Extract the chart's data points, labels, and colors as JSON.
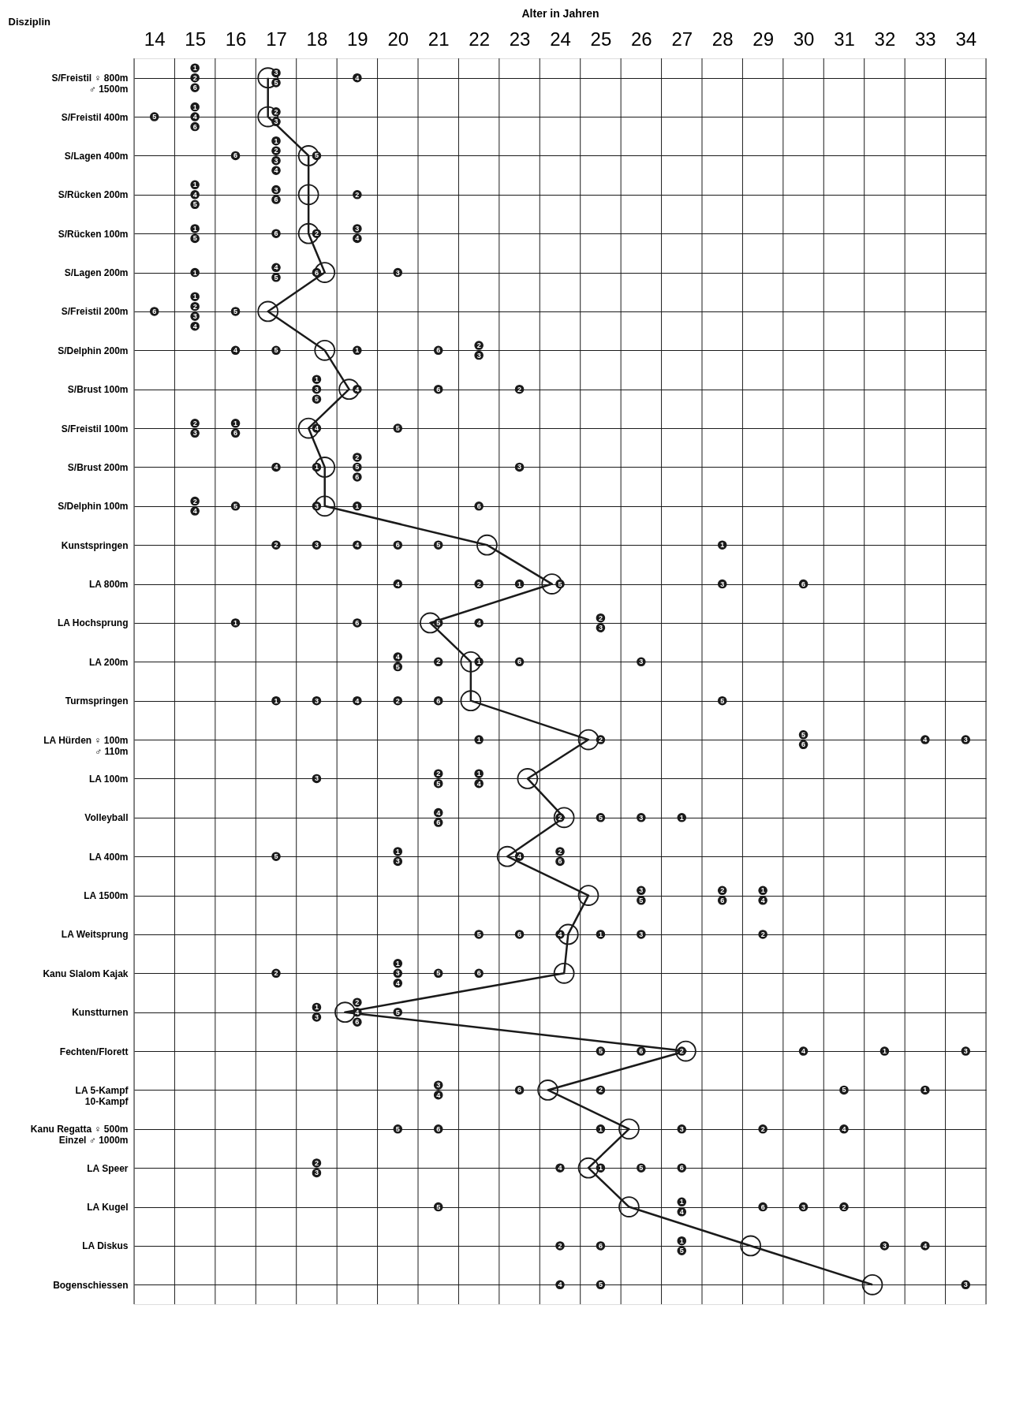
{
  "chart_data": {
    "type": "scatter",
    "orientation": "horizontal",
    "xlabel": "Alter in Jahren",
    "ylabel": "Disziplin",
    "categories": [
      "S/Freistil ♀ 800m\n♂ 1500m",
      "S/Freistil 400m",
      "S/Lagen 400m",
      "S/Rücken 200m",
      "S/Rücken 100m",
      "S/Lagen 200m",
      "S/Freistil 200m",
      "S/Delphin 200m",
      "S/Brust 100m",
      "S/Freistil 100m",
      "S/Brust 200m",
      "S/Delphin 100m",
      "Kunstspringen",
      "LA 800m",
      "LA Hochsprung",
      "LA 200m",
      "Turmspringen",
      "LA Hürden ♀ 100m\n♂ 110m",
      "LA 100m",
      "Volleyball",
      "LA 400m",
      "LA 1500m",
      "LA Weitsprung",
      "Kanu Slalom Kajak",
      "Kunstturnen",
      "Fechten/Florett",
      "LA 5-Kampf\n10-Kampf",
      "Kanu Regatta ♀ 500m\nEinzel ♂ 1000m",
      "LA Speer",
      "LA Kugel",
      "LA Diskus",
      "Bogenschiessen"
    ],
    "xlim": [
      13.5,
      34.5
    ],
    "xticks": [
      14,
      15,
      16,
      17,
      18,
      19,
      20,
      21,
      22,
      23,
      24,
      25,
      26,
      27,
      28,
      29,
      30,
      31,
      32,
      33,
      34
    ],
    "grid": true,
    "series": [
      {
        "type": "line",
        "color": "#1a1a1a",
        "marker": "circle",
        "values": [
          16.8,
          16.8,
          17.8,
          17.8,
          17.8,
          18.2,
          16.8,
          18.2,
          18.8,
          17.8,
          18.2,
          18.2,
          22.2,
          23.8,
          20.8,
          21.8,
          21.8,
          24.7,
          23.2,
          24.1,
          22.7,
          24.7,
          24.2,
          24.1,
          18.7,
          27.1,
          23.7,
          25.7,
          24.7,
          25.7,
          28.7,
          31.7
        ]
      },
      {
        "name": "1",
        "type": "scatter",
        "color": "#1a1a1a",
        "values": [
          15,
          15,
          17,
          15,
          15,
          15,
          15,
          19,
          18,
          16,
          18,
          19,
          28,
          23,
          16,
          22,
          17,
          22,
          22,
          27,
          20,
          29,
          25,
          20,
          18,
          32,
          33,
          25,
          25,
          27,
          27,
          null
        ]
      },
      {
        "name": "2",
        "type": "scatter",
        "color": "#1a1a1a",
        "values": [
          15,
          17,
          17,
          19,
          18,
          null,
          15,
          22,
          23,
          15,
          19,
          15,
          17,
          22,
          25,
          21,
          20,
          25,
          21,
          24,
          24,
          28,
          29,
          17,
          19,
          27,
          25,
          29,
          18,
          31,
          24,
          null
        ]
      },
      {
        "name": "3",
        "type": "scatter",
        "color": "#1a1a1a",
        "values": [
          17,
          17,
          17,
          17,
          19,
          20,
          15,
          22,
          18,
          15,
          23,
          18,
          18,
          28,
          25,
          26,
          18,
          34,
          18,
          26,
          20,
          26,
          26,
          20,
          18,
          34,
          21,
          27,
          18,
          30,
          32,
          34
        ]
      },
      {
        "name": "4",
        "type": "scatter",
        "color": "#1a1a1a",
        "values": [
          19,
          15,
          17,
          15,
          19,
          17,
          15,
          16,
          19,
          18,
          17,
          15,
          19,
          20,
          22,
          20,
          19,
          33,
          22,
          21,
          23,
          29,
          24,
          20,
          19,
          30,
          21,
          31,
          24,
          27,
          33,
          24
        ]
      },
      {
        "name": "5",
        "type": "scatter",
        "color": "#1a1a1a",
        "values": [
          17,
          14,
          18,
          15,
          15,
          17,
          16,
          17,
          18,
          20,
          19,
          16,
          21,
          24,
          21,
          20,
          28,
          30,
          21,
          25,
          17,
          26,
          22,
          21,
          20,
          25,
          31,
          20,
          26,
          21,
          27,
          25
        ]
      },
      {
        "name": "6",
        "type": "scatter",
        "color": "#1a1a1a",
        "values": [
          15,
          15,
          16,
          17,
          17,
          18,
          14,
          21,
          21,
          16,
          19,
          22,
          20,
          30,
          19,
          23,
          21,
          30,
          null,
          21,
          24,
          28,
          23,
          22,
          19,
          26,
          23,
          21,
          27,
          29,
          25,
          null
        ]
      }
    ]
  }
}
